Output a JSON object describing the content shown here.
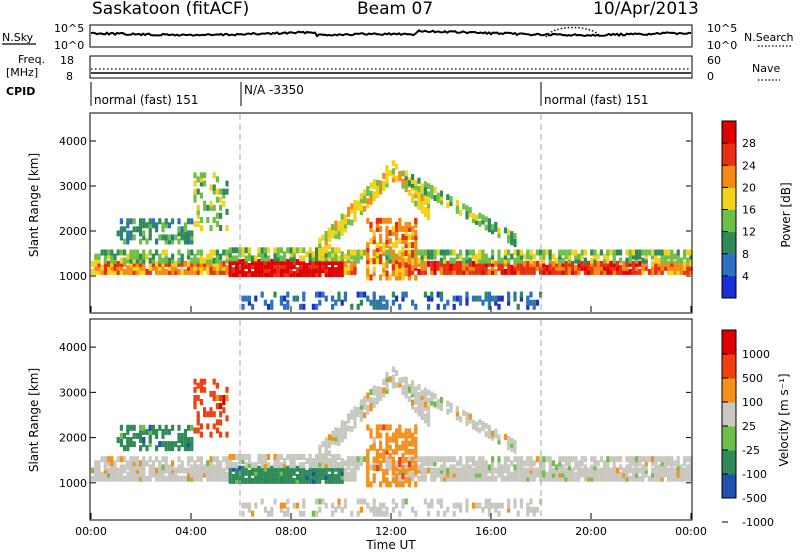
{
  "header": {
    "station": "Saskatoon (fitACF)",
    "beam": "Beam 07",
    "date": "10/Apr/2013"
  },
  "sky_panel": {
    "left_label": "N.Sky",
    "right_label": "N.Search",
    "left_ticks": [
      "10^5",
      "10^0"
    ],
    "right_ticks": [
      "10^5",
      "10^0"
    ]
  },
  "freq_panel": {
    "left_label_1": "Freq.",
    "left_label_2": "[MHz]",
    "right_label": "Nave",
    "left_ticks": [
      "18",
      "8"
    ],
    "right_ticks": [
      "60",
      "0"
    ]
  },
  "cpid": {
    "label": "CPID",
    "segments": [
      {
        "text": "normal (fast) 151",
        "start_hour": 0
      },
      {
        "text": "N/A -3350",
        "start_hour": 6
      },
      {
        "text": "normal (fast) 151",
        "start_hour": 18
      }
    ]
  },
  "colors": {
    "power": [
      "#1a2fd6",
      "#2d6fc0",
      "#2e8b57",
      "#6cc04a",
      "#f2d21a",
      "#f58a14",
      "#e83010",
      "#e00000"
    ],
    "velocity": [
      "#e00000",
      "#f04010",
      "#f5901a",
      "#c8c8c0",
      "#6cc04a",
      "#2e8b57",
      "#2050b0"
    ]
  },
  "chart_data": [
    {
      "type": "heatmap",
      "name": "power",
      "ylabel": "Slant Range [km]",
      "yticks": [
        "1000",
        "2000",
        "3000",
        "4000"
      ],
      "ylim": [
        200,
        4600
      ],
      "xlim": [
        0,
        24
      ],
      "colorbar_label": "Power [dB]",
      "colorbar_ticks": [
        "4",
        "8",
        "12",
        "16",
        "20",
        "24",
        "28"
      ],
      "clim": [
        0,
        32
      ]
    },
    {
      "type": "heatmap",
      "name": "velocity",
      "ylabel": "Slant Range [km]",
      "yticks": [
        "1000",
        "2000",
        "3000",
        "4000"
      ],
      "ylim": [
        200,
        4600
      ],
      "xlim": [
        0,
        24
      ],
      "colorbar_label": "Velocity [m s⁻¹]",
      "colorbar_ticks": [
        "1000",
        "500",
        "100",
        "25",
        "-25",
        "-100",
        "-500",
        "-1000"
      ],
      "xlabel": "Time UT",
      "xticks": [
        "00:00",
        "04:00",
        "08:00",
        "12:00",
        "16:00",
        "20:00",
        "00:00"
      ]
    }
  ]
}
